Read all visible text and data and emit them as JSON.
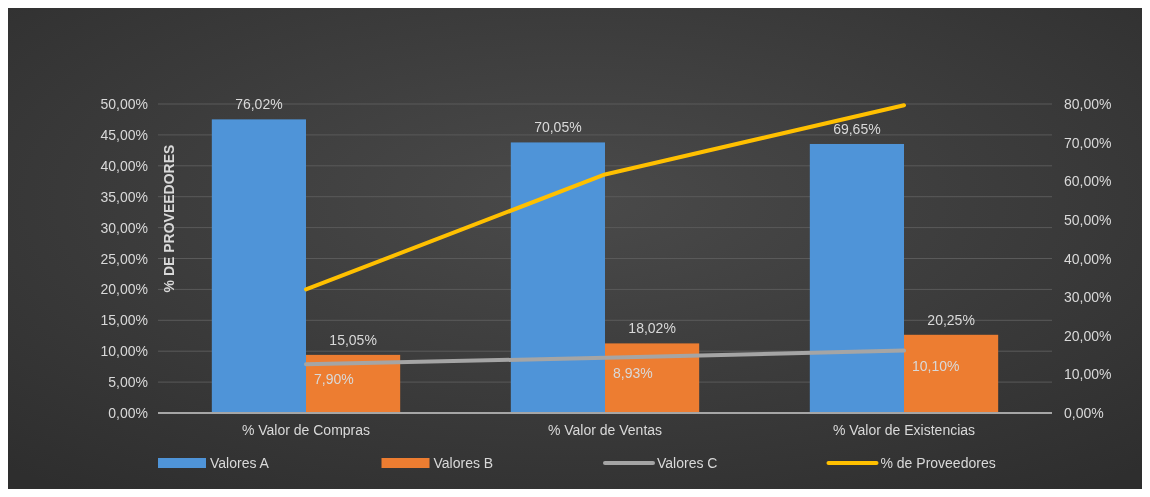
{
  "chart_data": {
    "type": "bar",
    "ylabel": "% DE PROVEEDORES",
    "categories": [
      "% Valor de Compras",
      "% Valor de Ventas",
      "% Valor de Existencias"
    ],
    "series": [
      {
        "name": "Valores A",
        "color": "#4f94d8",
        "axis": "y2",
        "values": [
          76.02,
          70.05,
          69.65
        ],
        "value_labels": [
          "76,02%",
          "70,05%",
          "69,65%"
        ]
      },
      {
        "name": "Valores B",
        "color": "#ed7d31",
        "axis": "y2",
        "values": [
          15.05,
          18.02,
          20.25
        ],
        "value_labels": [
          "15,05%",
          "18,02%",
          "20,25%"
        ]
      },
      {
        "name": "Valores C",
        "type": "line",
        "color": "#a5a5a5",
        "values": [
          7.9,
          8.93,
          10.1
        ],
        "value_labels": [
          "7,90%",
          "8,93%",
          "10,10%"
        ]
      },
      {
        "name": "% de Proveedores",
        "type": "line",
        "color": "#ffc000",
        "values": [
          20,
          38.6,
          49.8
        ]
      }
    ],
    "ylim": [
      0,
      50
    ],
    "yticks": [
      {
        "value": 0,
        "label": "0,00%"
      },
      {
        "value": 5,
        "label": "5,00%"
      },
      {
        "value": 10,
        "label": "10,00%"
      },
      {
        "value": 15,
        "label": "15,00%"
      },
      {
        "value": 20,
        "label": "20,00%"
      },
      {
        "value": 25,
        "label": "25,00%"
      },
      {
        "value": 30,
        "label": "30,00%"
      },
      {
        "value": 35,
        "label": "35,00%"
      },
      {
        "value": 40,
        "label": "40,00%"
      },
      {
        "value": 45,
        "label": "45,00%"
      },
      {
        "value": 50,
        "label": "50,00%"
      }
    ],
    "y2lim": [
      0,
      80
    ],
    "y2ticks": [
      {
        "value": 0,
        "label": "0,00%"
      },
      {
        "value": 10,
        "label": "10,00%"
      },
      {
        "value": 20,
        "label": "20,00%"
      },
      {
        "value": 30,
        "label": "30,00%"
      },
      {
        "value": 40,
        "label": "40,00%"
      },
      {
        "value": 50,
        "label": "50,00%"
      },
      {
        "value": 60,
        "label": "60,00%"
      },
      {
        "value": 70,
        "label": "70,00%"
      },
      {
        "value": 80,
        "label": "80,00%"
      }
    ],
    "grid": "y",
    "legend": "bottom"
  }
}
